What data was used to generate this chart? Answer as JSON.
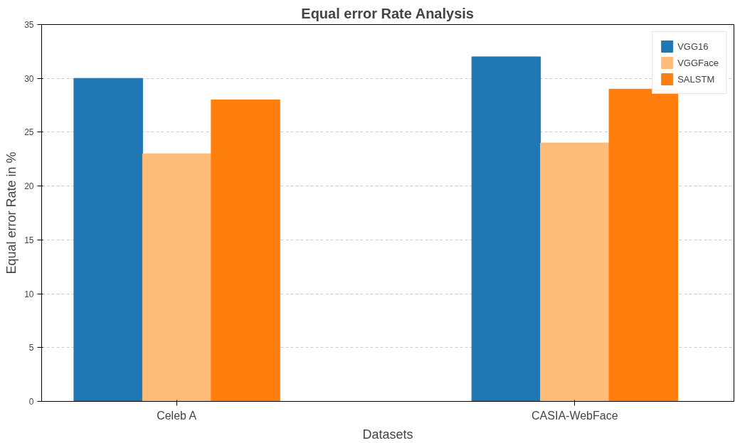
{
  "chart_data": {
    "type": "bar",
    "title": "Equal error Rate Analysis",
    "xlabel": "Datasets",
    "ylabel": "Equal error Rate in %",
    "categories": [
      "Celeb A",
      "CASIA-WebFace"
    ],
    "series": [
      {
        "name": "VGG16",
        "color": "#1f77b4",
        "values": [
          30,
          32
        ]
      },
      {
        "name": "VGGFace",
        "color": "#ffbb78",
        "values": [
          23,
          24
        ]
      },
      {
        "name": "SALSTM",
        "color": "#ff7f0e",
        "values": [
          28,
          29
        ]
      }
    ],
    "ylim": [
      0,
      35
    ],
    "yticks": [
      0,
      5,
      10,
      15,
      20,
      25,
      30,
      35
    ],
    "grid": "y",
    "legend": "top right"
  }
}
